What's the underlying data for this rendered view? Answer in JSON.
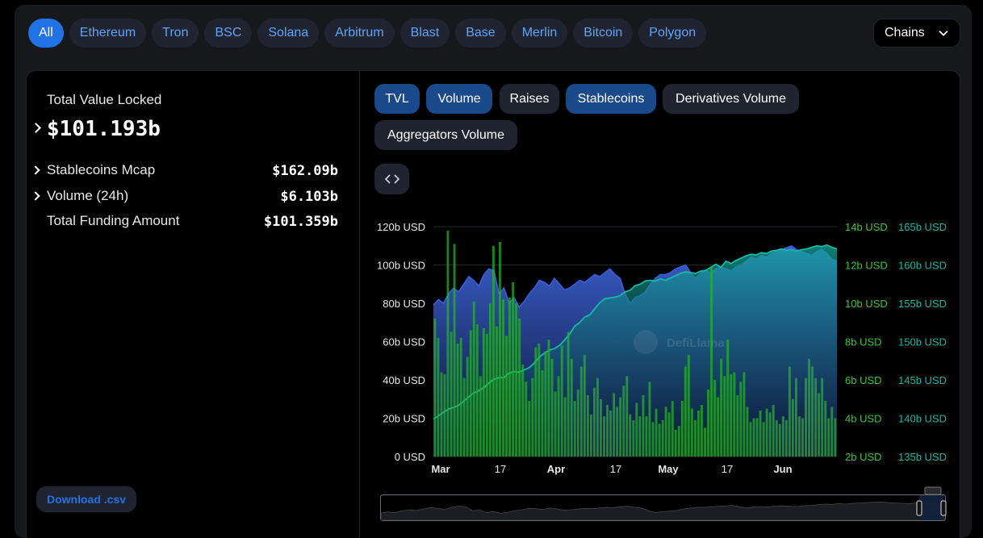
{
  "chain_tabs": [
    "All",
    "Ethereum",
    "Tron",
    "BSC",
    "Solana",
    "Arbitrum",
    "Blast",
    "Base",
    "Merlin",
    "Bitcoin",
    "Polygon"
  ],
  "chains_dropdown": "Chains",
  "stats": {
    "tvl_label": "Total Value Locked",
    "tvl_value": "$101.193b",
    "rows": [
      {
        "label": "Stablecoins Mcap",
        "value": "$162.09b"
      },
      {
        "label": "Volume (24h)",
        "value": "$6.103b"
      },
      {
        "label": "Total Funding Amount",
        "value": "$101.359b"
      }
    ]
  },
  "metric_tabs": [
    "TVL",
    "Volume",
    "Raises",
    "Stablecoins",
    "Derivatives Volume",
    "Aggregators Volume"
  ],
  "active_metric_tabs": [
    "TVL",
    "Volume",
    "Stablecoins"
  ],
  "download_label": "Download .csv",
  "watermark": "DefiLlama",
  "colors": {
    "accent": "#2172e5",
    "tvl": "#3a64d8",
    "volume": "#2fa236",
    "stablecoins": "#14b8a6",
    "background": "#000000"
  },
  "chart_data": {
    "type": "area",
    "x_ticks": [
      "Mar",
      "17",
      "Apr",
      "17",
      "May",
      "17",
      "Jun"
    ],
    "axes": {
      "left": {
        "ticks": [
          "120b USD",
          "100b USD",
          "80b USD",
          "60b USD",
          "40b USD",
          "20b USD",
          "0 USD"
        ],
        "range": [
          0,
          120
        ],
        "unit": "b USD"
      },
      "right_volume": {
        "ticks": [
          "14b USD",
          "12b USD",
          "10b USD",
          "8b USD",
          "6b USD",
          "4b USD",
          "2b USD"
        ],
        "range": [
          2,
          14
        ],
        "unit": "b USD"
      },
      "right_stablecoins": {
        "ticks": [
          "165b USD",
          "160b USD",
          "155b USD",
          "150b USD",
          "145b USD",
          "140b USD",
          "135b USD"
        ],
        "range": [
          135,
          165
        ],
        "unit": "b USD"
      }
    },
    "series": [
      {
        "name": "TVL",
        "axis": "left",
        "values": [
          79,
          82,
          80,
          85,
          88,
          86,
          90,
          94,
          92,
          89,
          95,
          98,
          97,
          85,
          88,
          80,
          83,
          78,
          81,
          85,
          88,
          92,
          91,
          89,
          93,
          90,
          87,
          88,
          90,
          92,
          91,
          93,
          95,
          94,
          96,
          98,
          95,
          93,
          85,
          80,
          83,
          84,
          86,
          90,
          93,
          95,
          95,
          96,
          98,
          99,
          100,
          96,
          93,
          96,
          97,
          96,
          98,
          99,
          98,
          97,
          99,
          100,
          102,
          104,
          103,
          105,
          104,
          106,
          107,
          108,
          109,
          110,
          108,
          107,
          106,
          105,
          107,
          108,
          106,
          103,
          102
        ]
      },
      {
        "name": "Stablecoins",
        "axis": "right_stablecoins",
        "values": [
          139.9,
          140.3,
          140.8,
          141.2,
          141.4,
          141.7,
          142.2,
          142.8,
          143.3,
          143.6,
          144.0,
          144.6,
          145.1,
          145.3,
          145.3,
          145.9,
          146.1,
          146.0,
          146.3,
          146.6,
          147.2,
          148.0,
          148.5,
          148.9,
          149.1,
          149.5,
          150.2,
          151.0,
          152.0,
          152.5,
          153.2,
          153.5,
          154.3,
          155.1,
          155.6,
          155.7,
          155.8,
          156.0,
          156.5,
          156.7,
          157.3,
          157.5,
          157.9,
          158.0,
          157.9,
          158.2,
          158.0,
          158.3,
          158.6,
          158.9,
          159.1,
          159.0,
          158.9,
          159.2,
          159.3,
          159.7,
          160.1,
          159.7,
          160.5,
          160.2,
          160.6,
          160.9,
          161.2,
          161.4,
          161.3,
          161.6,
          161.5,
          161.8,
          161.9,
          162.1,
          161.9,
          162.0,
          161.8,
          162.0,
          162.1,
          162.3,
          162.5,
          162.4,
          162.6,
          162.3,
          162.1
        ]
      },
      {
        "name": "Volume",
        "axis": "right_volume",
        "values": [
          9.2,
          8.2,
          6.4,
          6.3,
          13.8,
          8.5,
          13.1,
          7.9,
          8.2,
          6.1,
          7.2,
          8.6,
          10.1,
          8.9,
          6.2,
          8.7,
          8.4,
          10.0,
          13.0,
          8.8,
          13.2,
          10.2,
          8.3,
          10.3,
          11.1,
          10.0,
          9.2,
          6.8,
          5.9,
          4.9,
          6.1,
          7.7,
          7.9,
          6.5,
          7.5,
          8.1,
          7.1,
          5.4,
          6.2,
          7.8,
          5.1,
          8.5,
          7.1,
          4.9,
          5.5,
          6.7,
          7.3,
          5.2,
          4.2,
          5.6,
          6.1,
          5.0,
          4.1,
          4.7,
          4.4,
          5.3,
          4.6,
          5.1,
          5.7,
          6.2,
          4.2,
          3.9,
          4.8,
          4.1,
          5.2,
          4.1,
          5.9,
          3.8,
          4.5,
          3.7,
          3.9,
          4.6,
          4.3,
          4.9,
          3.4,
          3.6,
          4.9,
          6.7,
          7.3,
          4.5,
          3.9,
          4.4,
          4.7,
          3.5,
          5.5,
          11.9,
          6.0,
          5.1,
          7.1,
          6.2,
          8.1,
          6.3,
          6.4,
          5.2,
          5.9,
          6.4,
          4.6,
          3.8,
          4.0,
          4.0,
          4.4,
          3.8,
          4.5,
          4.3,
          4.7,
          3.9,
          3.7,
          4.1,
          3.9,
          6.7,
          5.0,
          6.1,
          4.1,
          4.0,
          6.1,
          7.1,
          6.7,
          6.1,
          5.3,
          6.1,
          4.9,
          4.0,
          4.6,
          4.0
        ]
      }
    ],
    "legend": "none",
    "grid": true
  }
}
